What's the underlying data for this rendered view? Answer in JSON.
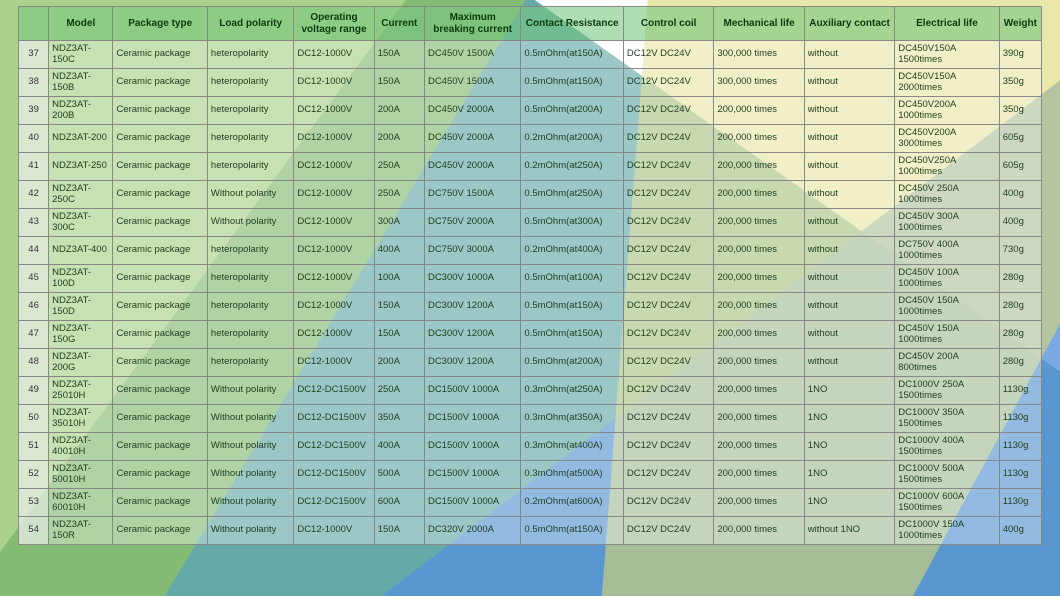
{
  "bg": {
    "colors": {
      "teal": "#2d8a8a",
      "green": "#7bb84a",
      "blue": "#3b7fd4",
      "yellow": "#d4d05a",
      "white": "#ffffff"
    }
  },
  "table": {
    "headers": [
      "",
      "Model",
      "Package type",
      "Load polarity",
      "Operating voltage range",
      "Current",
      "Maximum breaking current",
      "Contact Resistance",
      "Control coil",
      "Mechanical life",
      "Auxiliary contact",
      "Electrical life",
      "Weight"
    ],
    "rows": [
      [
        "37",
        "NDZ3AT-150C",
        "Ceramic package",
        "heteropolarity",
        "DC12-1000V",
        "150A",
        "DC450V 1500A",
        "0.5mOhm(at150A)",
        "DC12V DC24V",
        "300,000 times",
        "without",
        "DC450V150A 1500times",
        "390g"
      ],
      [
        "38",
        "NDZ3AT-150B",
        "Ceramic package",
        "heteropolarity",
        "DC12-1000V",
        "150A",
        "DC450V 1500A",
        "0.5mOhm(at150A)",
        "DC12V DC24V",
        "300,000 times",
        "without",
        "DC450V150A 2000times",
        "350g"
      ],
      [
        "39",
        "NDZ3AT-200B",
        "Ceramic package",
        "heteropolarity",
        "DC12-1000V",
        "200A",
        "DC450V 2000A",
        "0.5mOhm(at200A)",
        "DC12V DC24V",
        "200,000 times",
        "without",
        "DC450V200A 1000times",
        "350g"
      ],
      [
        "40",
        "NDZ3AT-200",
        "Ceramic package",
        "heteropolarity",
        "DC12-1000V",
        "200A",
        "DC450V 2000A",
        "0.2mOhm(at200A)",
        "DC12V DC24V",
        "200,000 times",
        "without",
        "DC450V200A 3000times",
        "605g"
      ],
      [
        "41",
        "NDZ3AT-250",
        "Ceramic package",
        "heteropolarity",
        "DC12-1000V",
        "250A",
        "DC450V 2000A",
        "0.2mOhm(at250A)",
        "DC12V DC24V",
        "200,000 times",
        "without",
        "DC450V250A 1000times",
        "605g"
      ],
      [
        "42",
        "NDZ3AT-250C",
        "Ceramic package",
        "Without polarity",
        "DC12-1000V",
        "250A",
        "DC750V 1500A",
        "0.5mOhm(at250A)",
        "DC12V DC24V",
        "200,000 times",
        "without",
        "DC450V 250A 1000times",
        "400g"
      ],
      [
        "43",
        "NDZ3AT-300C",
        "Ceramic package",
        "Without polarity",
        "DC12-1000V",
        "300A",
        "DC750V 2000A",
        "0.5mOhm(at300A)",
        "DC12V DC24V",
        "200,000 times",
        "without",
        "DC450V 300A 1000times",
        "400g"
      ],
      [
        "44",
        "NDZ3AT-400",
        "Ceramic package",
        "heteropolarity",
        "DC12-1000V",
        "400A",
        "DC750V 3000A",
        "0.2mOhm(at400A)",
        "DC12V DC24V",
        "200,000 times",
        "without",
        "DC750V 400A 1000times",
        "730g"
      ],
      [
        "45",
        "NDZ3AT-100D",
        "Ceramic package",
        "heteropolarity",
        "DC12-1000V",
        "100A",
        "DC300V 1000A",
        "0.5mOhm(at100A)",
        "DC12V DC24V",
        "200,000 times",
        "without",
        "DC450V 100A 1000times",
        "280g"
      ],
      [
        "46",
        "NDZ3AT-150D",
        "Ceramic package",
        "heteropolarity",
        "DC12-1000V",
        "150A",
        "DC300V 1200A",
        "0.5mOhm(at150A)",
        "DC12V DC24V",
        "200,000 times",
        "without",
        "DC450V 150A 1000times",
        "280g"
      ],
      [
        "47",
        "NDZ3AT-150G",
        "Ceramic package",
        "heteropolarity",
        "DC12-1000V",
        "150A",
        "DC300V 1200A",
        "0.5mOhm(at150A)",
        "DC12V DC24V",
        "200,000 times",
        "without",
        "DC450V 150A 1000times",
        "280g"
      ],
      [
        "48",
        "NDZ3AT-200G",
        "Ceramic package",
        "heteropolarity",
        "DC12-1000V",
        "200A",
        "DC300V 1200A",
        "0.5mOhm(at200A)",
        "DC12V DC24V",
        "200,000 times",
        "without",
        "DC450V 200A 800times",
        "280g"
      ],
      [
        "49",
        "NDZ3AT-25010H",
        "Ceramic package",
        "Without polarity",
        "DC12-DC1500V",
        "250A",
        "DC1500V 1000A",
        "0.3mOhm(at250A)",
        "DC12V DC24V",
        "200,000 times",
        "1NO",
        "DC1000V 250A 1500times",
        "1130g"
      ],
      [
        "50",
        "NDZ3AT-35010H",
        "Ceramic package",
        "Without polarity",
        "DC12-DC1500V",
        "350A",
        "DC1500V 1000A",
        "0.3mOhm(at350A)",
        "DC12V DC24V",
        "200,000 times",
        "1NO",
        "DC1000V 350A 1500times",
        "1130g"
      ],
      [
        "51",
        "NDZ3AT-40010H",
        "Ceramic package",
        "Without polarity",
        "DC12-DC1500V",
        "400A",
        "DC1500V 1000A",
        "0.3mOhm(at400A)",
        "DC12V DC24V",
        "200,000 times",
        "1NO",
        "DC1000V 400A 1500times",
        "1130g"
      ],
      [
        "52",
        "NDZ3AT-50010H",
        "Ceramic package",
        "Without polarity",
        "DC12-DC1500V",
        "500A",
        "DC1500V 1000A",
        "0.3mOhm(at500A)",
        "DC12V DC24V",
        "200,000 times",
        "1NO",
        "DC1000V 500A 1500times",
        "1130g"
      ],
      [
        "53",
        "NDZ3AT-60010H",
        "Ceramic package",
        "Without polarity",
        "DC12-DC1500V",
        "600A",
        "DC1500V 1000A",
        "0.2mOhm(at600A)",
        "DC12V DC24V",
        "200,000 times",
        "1NO",
        "DC1000V 600A 1500times",
        "1130g"
      ],
      [
        "54",
        "NDZ3AT-150R",
        "Ceramic package",
        "Without polarity",
        "DC12-1000V",
        "150A",
        "DC320V 2000A",
        "0.5mOhm(at150A)",
        "DC12V DC24V",
        "200,000 times",
        "without 1NO",
        "DC1000V 150A 1000times",
        "400g"
      ]
    ]
  }
}
